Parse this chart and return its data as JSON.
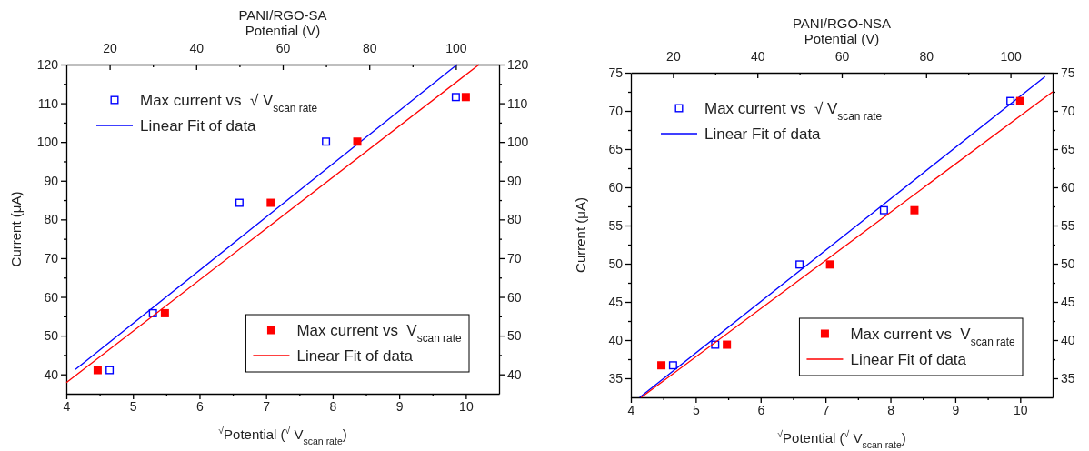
{
  "chart_data": [
    {
      "type": "scatter",
      "title": "PANI/RGO-SA",
      "xlabel": "$^{√}$Potential ($^{√}$ V$_{scan rate}$)",
      "ylabel": "Current (μA)",
      "x2label": "Potential (V)",
      "xlim": [
        4,
        10.5
      ],
      "xticks": [
        4,
        {
          "value": 4.5,
          "label": null
        },
        5,
        {
          "value": 5.5,
          "label": null
        },
        6,
        {
          "value": 6.5,
          "label": null
        },
        7,
        {
          "value": 7.5,
          "label": null
        },
        8,
        {
          "value": 8.5,
          "label": null
        },
        9,
        {
          "value": 9.5,
          "label": null
        },
        10
      ],
      "x2lim": [
        10,
        110
      ],
      "x2ticks": [
        20,
        {
          "value": 30,
          "label": null
        },
        40,
        {
          "value": 50,
          "label": null
        },
        60,
        {
          "value": 70,
          "label": null
        },
        80,
        {
          "value": 90,
          "label": null
        },
        100
      ],
      "ylim": [
        35,
        120
      ],
      "yticks": [
        40,
        {
          "value": 45,
          "label": null
        },
        50,
        {
          "value": 55,
          "label": null
        },
        60,
        {
          "value": 65,
          "label": null
        },
        70,
        {
          "value": 75,
          "label": null
        },
        80,
        {
          "value": 85,
          "label": null
        },
        90,
        {
          "value": 95,
          "label": null
        },
        100,
        {
          "value": 105,
          "label": null
        },
        110,
        {
          "value": 115,
          "label": null
        },
        120
      ],
      "y2lim": [
        35,
        120
      ],
      "y2ticks": [
        40,
        {
          "value": 45,
          "label": null
        },
        50,
        {
          "value": 55,
          "label": null
        },
        60,
        {
          "value": 65,
          "label": null
        },
        70,
        {
          "value": 75,
          "label": null
        },
        80,
        {
          "value": 85,
          "label": null
        },
        90,
        {
          "value": 95,
          "label": null
        },
        100,
        {
          "value": 105,
          "label": null
        },
        110,
        {
          "value": 115,
          "label": null
        },
        120
      ],
      "grid": false,
      "legend": "top left",
      "series": [
        {
          "name": "Max current vs  √ V$_{scan rate}$",
          "axis": "x2",
          "marker": "square-open",
          "color": "#0000ff",
          "x": [
            20,
            30,
            50,
            70,
            100
          ],
          "values": [
            41.1,
            55.8,
            84.3,
            100.1,
            111.6
          ]
        },
        {
          "name": "Linear Fit of data",
          "type": "line",
          "axis": "x2",
          "color": "#0000ff",
          "x": [
            12.1,
            100.3
          ],
          "values": [
            41.3,
            120
          ]
        },
        {
          "name": "Max current vs  V$_{scan rate}$",
          "marker": "square",
          "color": "#ff0000",
          "x": [
            4.47,
            5.48,
            7.07,
            8.37,
            10
          ],
          "values": [
            41.1,
            55.8,
            84.3,
            100.1,
            111.6
          ]
        },
        {
          "name": "Linear Fit of data",
          "type": "line",
          "color": "#ff0000",
          "x": [
            4,
            10.2
          ],
          "values": [
            37.9,
            120
          ]
        }
      ]
    },
    {
      "type": "scatter",
      "title": "PANI/RGO-NSA",
      "xlabel": "$^{√}$Potential ($^{√}$ V$_{scan rate}$)",
      "ylabel": "Current (μA)",
      "x2label": "Potential (V)",
      "xlim": [
        4,
        10.5
      ],
      "xticks": [
        4,
        {
          "value": 4.5,
          "label": null
        },
        5,
        {
          "value": 5.5,
          "label": null
        },
        6,
        {
          "value": 6.5,
          "label": null
        },
        7,
        {
          "value": 7.5,
          "label": null
        },
        8,
        {
          "value": 8.5,
          "label": null
        },
        9,
        {
          "value": 9.5,
          "label": null
        },
        10
      ],
      "x2lim": [
        10,
        110
      ],
      "x2ticks": [
        20,
        {
          "value": 30,
          "label": null
        },
        40,
        {
          "value": 50,
          "label": null
        },
        60,
        {
          "value": 70,
          "label": null
        },
        80,
        {
          "value": 90,
          "label": null
        },
        100
      ],
      "ylim": [
        32.5,
        75
      ],
      "yticks": [
        35,
        {
          "value": 37.5,
          "label": null
        },
        40,
        {
          "value": 42.5,
          "label": null
        },
        45,
        {
          "value": 47.5,
          "label": null
        },
        50,
        {
          "value": 52.5,
          "label": null
        },
        55,
        {
          "value": 57.5,
          "label": null
        },
        60,
        {
          "value": 62.5,
          "label": null
        },
        65,
        {
          "value": 67.5,
          "label": null
        },
        70,
        {
          "value": 72.5,
          "label": null
        },
        75
      ],
      "y2lim": [
        32.5,
        75
      ],
      "y2ticks": [
        35,
        {
          "value": 37.5,
          "label": null
        },
        40,
        {
          "value": 42.5,
          "label": null
        },
        45,
        {
          "value": 47.5,
          "label": null
        },
        50,
        {
          "value": 52.5,
          "label": null
        },
        55,
        {
          "value": 57.5,
          "label": null
        },
        60,
        {
          "value": 62.5,
          "label": null
        },
        65,
        {
          "value": 67.5,
          "label": null
        },
        70,
        {
          "value": 72.5,
          "label": null
        },
        75
      ],
      "grid": false,
      "legend": "top left",
      "series": [
        {
          "name": "Max current vs  √ V$_{scan rate}$",
          "axis": "x2",
          "marker": "square-open",
          "color": "#0000ff",
          "x": [
            20,
            30,
            50,
            70,
            100
          ],
          "values": [
            36.7,
            39.4,
            49.9,
            57.0,
            71.3
          ]
        },
        {
          "name": "Linear Fit of data",
          "type": "line",
          "axis": "x2",
          "color": "#0000ff",
          "x": [
            12.1,
            108.2
          ],
          "values": [
            32.5,
            74.5
          ]
        },
        {
          "name": "Max current vs  V$_{scan rate}$",
          "marker": "square",
          "color": "#ff0000",
          "x": [
            4.47,
            5.48,
            7.07,
            8.37,
            10
          ],
          "values": [
            36.7,
            39.4,
            49.9,
            57.0,
            71.3
          ]
        },
        {
          "name": "Linear Fit of data",
          "type": "line",
          "color": "#ff0000",
          "x": [
            4.16,
            10.5
          ],
          "values": [
            32.5,
            72.5
          ]
        }
      ]
    }
  ]
}
